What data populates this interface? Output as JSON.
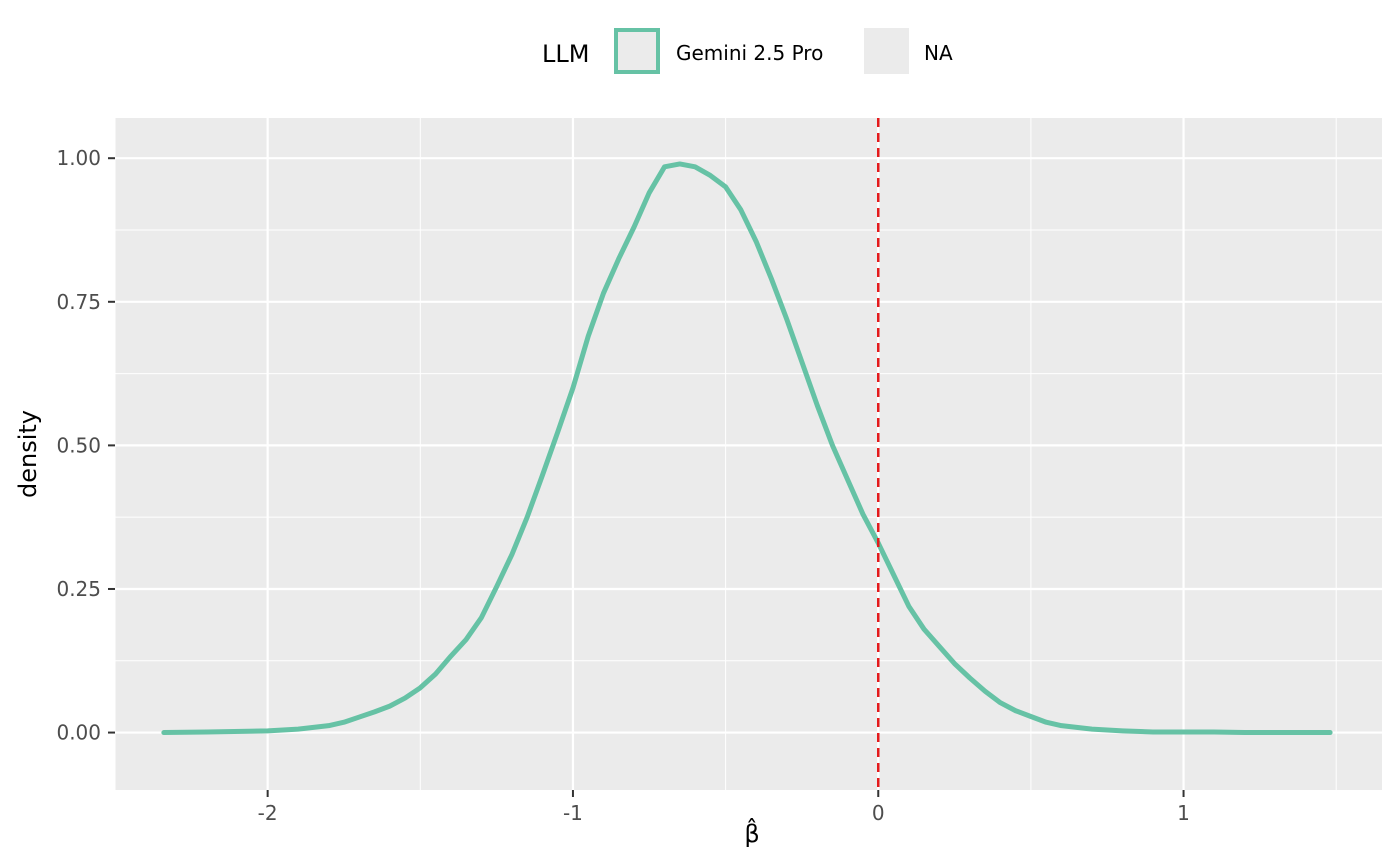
{
  "chart_data": {
    "type": "line",
    "title": "",
    "xlabel": "β̂",
    "ylabel": "density",
    "xlim": [
      -2.5,
      1.65
    ],
    "ylim": [
      -0.1,
      1.07
    ],
    "x_ticks": [
      -2,
      -1,
      0,
      1
    ],
    "x_tick_labels": [
      "-2",
      "-1",
      "0",
      "1"
    ],
    "y_ticks": [
      0.0,
      0.25,
      0.5,
      0.75,
      1.0
    ],
    "y_tick_labels": [
      "0.00",
      "0.25",
      "0.50",
      "0.75",
      "1.00"
    ],
    "grid": true,
    "legend": {
      "title": "LLM",
      "placement": "top",
      "entries": [
        "Gemini 2.5 Pro",
        "NA"
      ]
    },
    "reference_line": {
      "x": 0,
      "style": "dashed",
      "color": "#e41a1c"
    },
    "series": [
      {
        "name": "Gemini 2.5 Pro",
        "color": "#66c2a5",
        "x": [
          -2.34,
          -2.2,
          -2.0,
          -1.9,
          -1.8,
          -1.75,
          -1.7,
          -1.65,
          -1.6,
          -1.55,
          -1.5,
          -1.45,
          -1.4,
          -1.35,
          -1.3,
          -1.25,
          -1.2,
          -1.15,
          -1.1,
          -1.05,
          -1.0,
          -0.95,
          -0.9,
          -0.85,
          -0.8,
          -0.75,
          -0.7,
          -0.65,
          -0.6,
          -0.55,
          -0.5,
          -0.45,
          -0.4,
          -0.35,
          -0.3,
          -0.25,
          -0.2,
          -0.15,
          -0.1,
          -0.05,
          0.0,
          0.05,
          0.1,
          0.15,
          0.2,
          0.25,
          0.3,
          0.35,
          0.4,
          0.45,
          0.5,
          0.55,
          0.6,
          0.7,
          0.8,
          0.9,
          1.0,
          1.1,
          1.2,
          1.3,
          1.48
        ],
        "values": [
          0.0,
          0.001,
          0.003,
          0.006,
          0.012,
          0.018,
          0.027,
          0.036,
          0.046,
          0.06,
          0.078,
          0.102,
          0.133,
          0.162,
          0.2,
          0.254,
          0.31,
          0.375,
          0.448,
          0.523,
          0.6,
          0.69,
          0.765,
          0.825,
          0.88,
          0.94,
          0.985,
          0.99,
          0.985,
          0.97,
          0.95,
          0.91,
          0.855,
          0.79,
          0.72,
          0.645,
          0.57,
          0.5,
          0.44,
          0.38,
          0.33,
          0.275,
          0.22,
          0.18,
          0.15,
          0.12,
          0.095,
          0.072,
          0.052,
          0.038,
          0.028,
          0.018,
          0.012,
          0.006,
          0.003,
          0.001,
          0.001,
          0.001,
          0.0,
          0.0,
          0.0
        ]
      }
    ]
  }
}
